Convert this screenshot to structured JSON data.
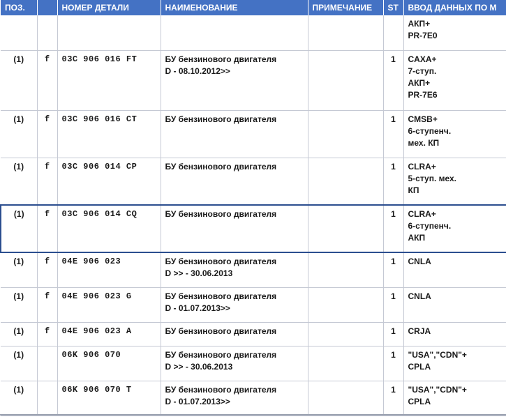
{
  "headers": {
    "pos": "ПОЗ.",
    "f": "",
    "part": "НОМЕР ДЕТАЛИ",
    "name": "НАИМЕНОВАНИЕ",
    "note": "ПРИМЕЧАНИЕ",
    "st": "ST",
    "data": "ВВОД ДАННЫХ ПО М"
  },
  "rows": [
    {
      "pos": "",
      "f": "",
      "part": "",
      "name": [
        "",
        ""
      ],
      "note": "",
      "st": "",
      "data": [
        "АКП+",
        "PR-7E0"
      ]
    },
    {
      "pos": "(1)",
      "f": "f",
      "part": "03C 906 016 FT",
      "name": [
        "БУ бензинового двигателя",
        "D - 08.10.2012>>"
      ],
      "note": "",
      "st": "1",
      "data": [
        "CAXA+",
        "7-ступ.",
        "АКП+",
        "PR-7E6"
      ]
    },
    {
      "pos": "(1)",
      "f": "f",
      "part": "03C 906 016 CT",
      "name": [
        "БУ бензинового двигателя",
        ""
      ],
      "note": "",
      "st": "1",
      "data": [
        "CMSB+",
        "6-ступенч.",
        "мех. КП"
      ]
    },
    {
      "pos": "(1)",
      "f": "f",
      "part": "03C 906 014 CP",
      "name": [
        "БУ бензинового двигателя",
        ""
      ],
      "note": "",
      "st": "1",
      "data": [
        "CLRA+",
        "5-ступ. мех.",
        "КП"
      ]
    },
    {
      "pos": "(1)",
      "f": "f",
      "part": "03C 906 014 CQ",
      "name": [
        "БУ бензинового двигателя",
        ""
      ],
      "note": "",
      "st": "1",
      "data": [
        "CLRA+",
        "6-ступенч.",
        "АКП"
      ]
    },
    {
      "pos": "(1)",
      "f": "f",
      "part": "04E 906 023",
      "name": [
        "БУ бензинового двигателя",
        "D            >> - 30.06.2013"
      ],
      "note": "",
      "st": "1",
      "data": [
        "CNLA"
      ]
    },
    {
      "pos": "(1)",
      "f": "f",
      "part": "04E 906 023 G",
      "name": [
        "БУ бензинового двигателя",
        "D - 01.07.2013>>"
      ],
      "note": "",
      "st": "1",
      "data": [
        "CNLA"
      ]
    },
    {
      "pos": "(1)",
      "f": "f",
      "part": "04E 906 023 A",
      "name": [
        "БУ бензинового двигателя",
        ""
      ],
      "note": "",
      "st": "1",
      "data": [
        "CRJA"
      ]
    },
    {
      "pos": "(1)",
      "f": "",
      "part": "06K 906 070",
      "name": [
        "БУ бензинового двигателя",
        "D            >> - 30.06.2013"
      ],
      "note": "",
      "st": "1",
      "data": [
        "\"USA\",\"CDN\"+",
        "CPLA"
      ]
    },
    {
      "pos": "(1)",
      "f": "",
      "part": "06K 906 070 T",
      "name": [
        "БУ бензинового двигателя",
        "D - 01.07.2013>>"
      ],
      "note": "",
      "st": "1",
      "data": [
        "\"USA\",\"CDN\"+",
        "CPLA"
      ]
    }
  ]
}
